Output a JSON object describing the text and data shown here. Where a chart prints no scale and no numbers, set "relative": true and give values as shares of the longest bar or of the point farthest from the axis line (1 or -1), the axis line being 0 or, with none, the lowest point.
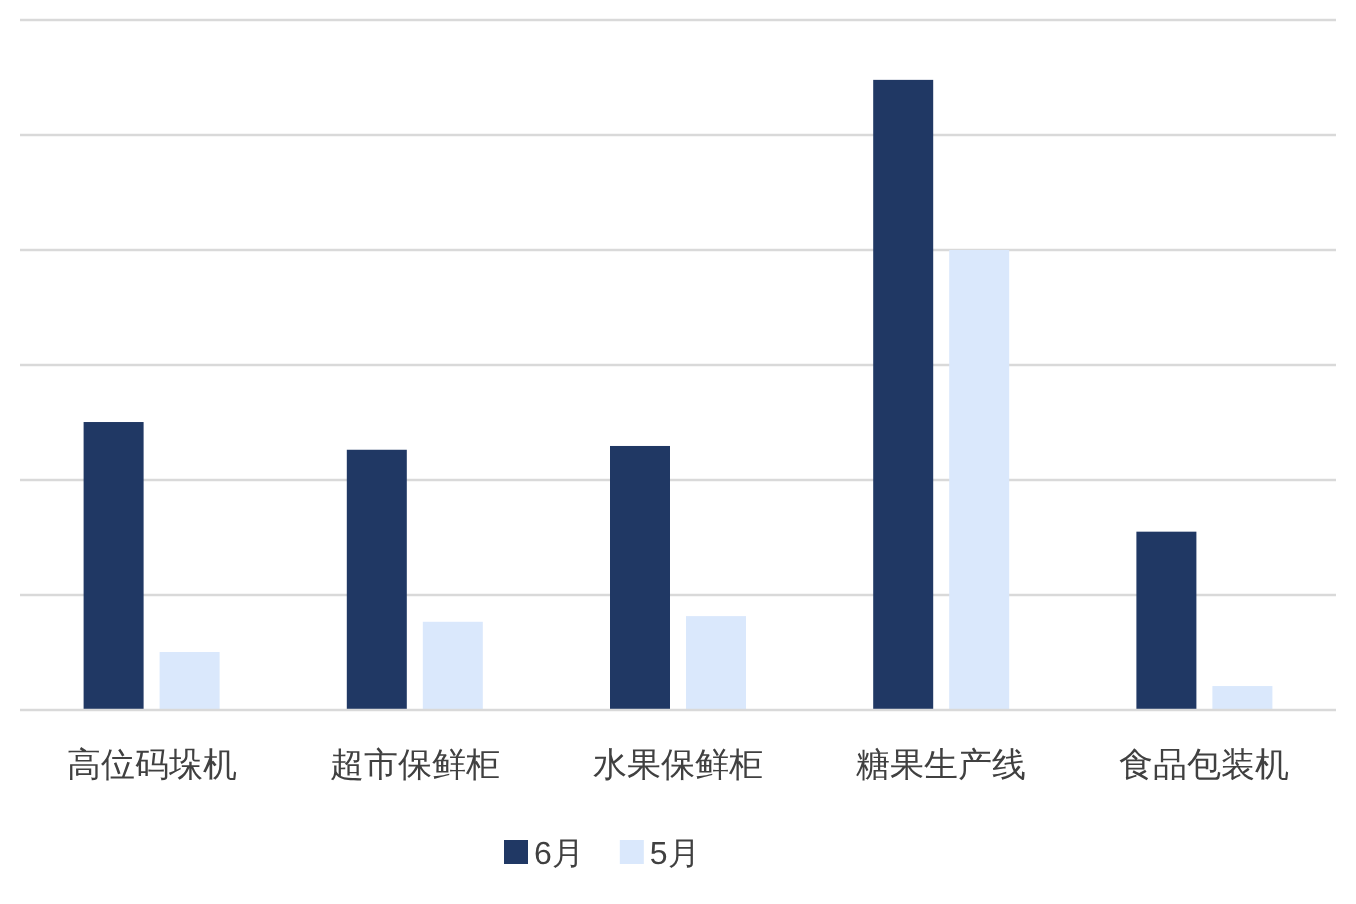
{
  "chart_data": {
    "type": "bar",
    "relative": true,
    "grid": "y",
    "legend": "bottom",
    "categories": [
      "高位码垛机",
      "超市保鲜柜",
      "水果保鲜柜",
      "糖果生产线",
      "食品包装机"
    ],
    "series": [
      {
        "name": "6月",
        "color": "#203864",
        "values": [
          0.457,
          0.413,
          0.419,
          1,
          0.283
        ]
      },
      {
        "name": "5月",
        "color": "#dae8fc",
        "values": [
          0.092,
          0.14,
          0.149,
          0.73,
          0.038
        ]
      }
    ]
  }
}
